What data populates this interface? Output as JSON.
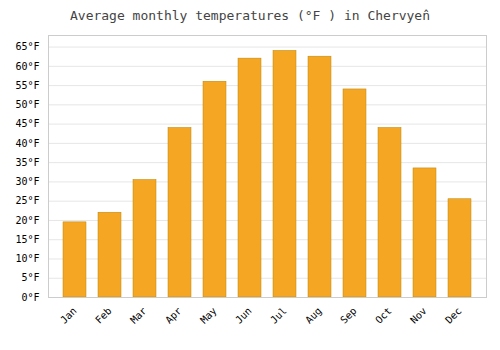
{
  "chart_data": {
    "type": "bar",
    "title": "Average monthly temperatures (°F ) in Chervyen̂",
    "categories": [
      "Jan",
      "Feb",
      "Mar",
      "Apr",
      "May",
      "Jun",
      "Jul",
      "Aug",
      "Sep",
      "Oct",
      "Nov",
      "Dec"
    ],
    "values": [
      19.5,
      22.0,
      30.5,
      44.0,
      56.0,
      62.0,
      64.0,
      62.5,
      54.0,
      44.0,
      33.5,
      25.5
    ],
    "color": "#F5A623",
    "ylim": [
      0,
      68
    ],
    "yticks": [
      {
        "value": 0,
        "label": "0°F"
      },
      {
        "value": 5,
        "label": "5°F"
      },
      {
        "value": 10,
        "label": "10°F"
      },
      {
        "value": 15,
        "label": "15°F"
      },
      {
        "value": 20,
        "label": "20°F"
      },
      {
        "value": 25,
        "label": "25°F"
      },
      {
        "value": 30,
        "label": "30°F"
      },
      {
        "value": 35,
        "label": "35°F"
      },
      {
        "value": 40,
        "label": "40°F"
      },
      {
        "value": 45,
        "label": "45°F"
      },
      {
        "value": 50,
        "label": "50°F"
      },
      {
        "value": 55,
        "label": "55°F"
      },
      {
        "value": 60,
        "label": "60°F"
      },
      {
        "value": 65,
        "label": "65°F"
      }
    ],
    "grid": true
  }
}
